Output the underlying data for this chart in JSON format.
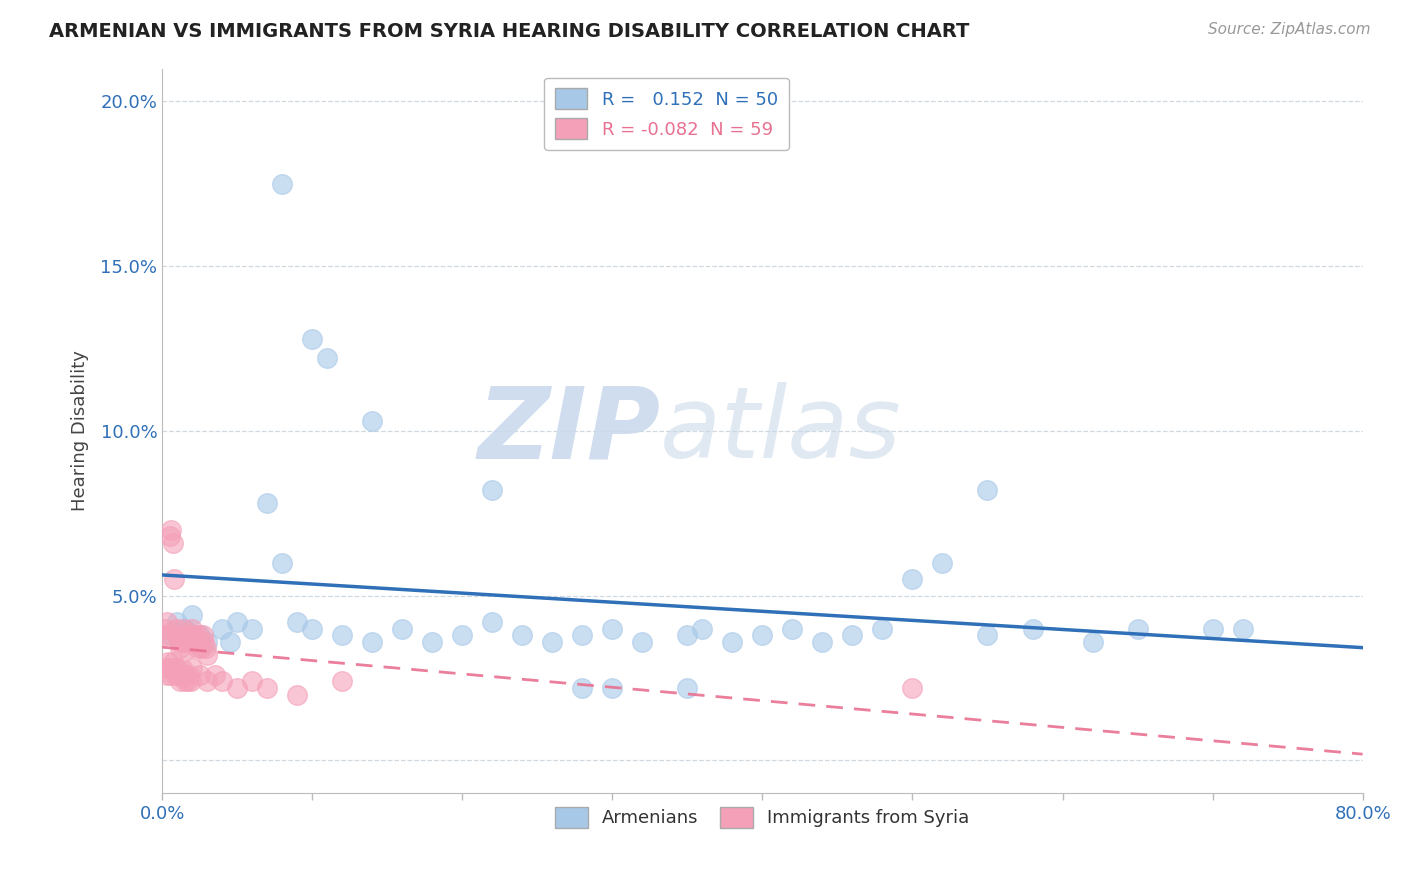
{
  "title": "ARMENIAN VS IMMIGRANTS FROM SYRIA HEARING DISABILITY CORRELATION CHART",
  "source": "Source: ZipAtlas.com",
  "ylabel": "Hearing Disability",
  "xmin": 0.0,
  "xmax": 0.8,
  "ymin": -0.01,
  "ymax": 0.21,
  "legend_r1": "R =   0.152  N = 50",
  "legend_r2": "R = -0.082  N = 59",
  "watermark_zip": "ZIP",
  "watermark_atlas": "atlas",
  "blue_color": "#a8c8e8",
  "pink_color": "#f4a0b8",
  "blue_line_color": "#3070b8",
  "pink_line_color": "#e87090",
  "grid_color": "#d0d8e0",
  "background_color": "#ffffff",
  "arm_x": [
    0.08,
    0.1,
    0.11,
    0.14,
    0.22,
    0.005,
    0.01,
    0.015,
    0.02,
    0.025,
    0.03,
    0.04,
    0.045,
    0.05,
    0.06,
    0.07,
    0.08,
    0.09,
    0.1,
    0.12,
    0.14,
    0.16,
    0.18,
    0.2,
    0.22,
    0.24,
    0.26,
    0.28,
    0.3,
    0.32,
    0.35,
    0.36,
    0.38,
    0.4,
    0.42,
    0.44,
    0.46,
    0.48,
    0.5,
    0.52,
    0.55,
    0.58,
    0.62,
    0.65,
    0.7,
    0.28,
    0.3,
    0.35,
    0.55,
    0.72
  ],
  "arm_y": [
    0.175,
    0.128,
    0.122,
    0.103,
    0.082,
    0.038,
    0.042,
    0.04,
    0.044,
    0.038,
    0.036,
    0.04,
    0.036,
    0.042,
    0.04,
    0.078,
    0.06,
    0.042,
    0.04,
    0.038,
    0.036,
    0.04,
    0.036,
    0.038,
    0.042,
    0.038,
    0.036,
    0.038,
    0.04,
    0.036,
    0.038,
    0.04,
    0.036,
    0.038,
    0.04,
    0.036,
    0.038,
    0.04,
    0.055,
    0.06,
    0.038,
    0.04,
    0.036,
    0.04,
    0.04,
    0.022,
    0.022,
    0.022,
    0.082,
    0.04
  ],
  "syr_x": [
    0.001,
    0.002,
    0.003,
    0.004,
    0.005,
    0.006,
    0.007,
    0.008,
    0.009,
    0.01,
    0.011,
    0.012,
    0.013,
    0.014,
    0.015,
    0.016,
    0.017,
    0.018,
    0.019,
    0.02,
    0.021,
    0.022,
    0.023,
    0.024,
    0.025,
    0.026,
    0.027,
    0.028,
    0.029,
    0.03,
    0.002,
    0.003,
    0.004,
    0.005,
    0.006,
    0.007,
    0.008,
    0.009,
    0.01,
    0.011,
    0.012,
    0.013,
    0.014,
    0.015,
    0.016,
    0.017,
    0.018,
    0.019,
    0.02,
    0.025,
    0.03,
    0.035,
    0.04,
    0.05,
    0.06,
    0.07,
    0.09,
    0.12,
    0.5
  ],
  "syr_y": [
    0.038,
    0.04,
    0.042,
    0.038,
    0.068,
    0.07,
    0.066,
    0.055,
    0.04,
    0.038,
    0.036,
    0.034,
    0.036,
    0.04,
    0.038,
    0.036,
    0.034,
    0.038,
    0.036,
    0.04,
    0.038,
    0.036,
    0.034,
    0.038,
    0.036,
    0.034,
    0.038,
    0.036,
    0.034,
    0.032,
    0.028,
    0.026,
    0.03,
    0.028,
    0.026,
    0.03,
    0.028,
    0.026,
    0.028,
    0.026,
    0.024,
    0.028,
    0.026,
    0.024,
    0.026,
    0.024,
    0.026,
    0.024,
    0.028,
    0.026,
    0.024,
    0.026,
    0.024,
    0.022,
    0.024,
    0.022,
    0.02,
    0.024,
    0.022
  ]
}
